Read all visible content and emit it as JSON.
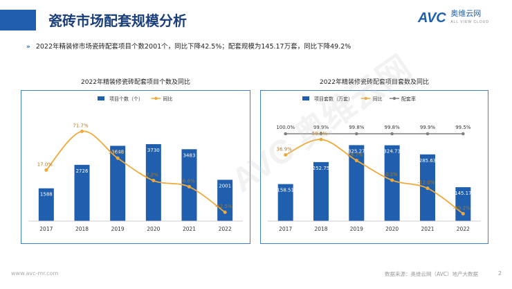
{
  "header": {
    "title": "瓷砖市场配套规模分析",
    "logo_text": "AVC",
    "logo_cn": "奥维云网",
    "logo_sub": "ALL VIEW CLOUD"
  },
  "summary": "2022年精装修市场瓷砖配套项目个数2001个，同比下降42.5%；配套规模为145.17万套，同比下降49.2%",
  "footer": {
    "left": "www.avc-mr.com",
    "right": "数据来源：奥维云网（AVC）地产大数据",
    "page": "2"
  },
  "watermark": "AVC 奥维云网",
  "colors": {
    "bar": "#1f5fae",
    "line": "#f0a93a",
    "ratio": "#808080",
    "border": "#3f7ed0"
  },
  "chart_data": [
    {
      "type": "bar",
      "title": "2022年精装修瓷砖配套项目个数及同比",
      "categories": [
        "2017",
        "2018",
        "2019",
        "2020",
        "2021",
        "2022"
      ],
      "legend": [
        "项目个数（个）",
        "同比"
      ],
      "series": [
        {
          "name": "项目个数（个）",
          "type": "bar",
          "values": [
            1588,
            2726,
            3648,
            3730,
            3483,
            2001
          ],
          "labels": [
            "1588",
            "2726",
            "3648",
            "3730",
            "3483",
            "2001"
          ]
        },
        {
          "name": "同比",
          "type": "line",
          "values": [
            17.0,
            71.7,
            33.8,
            2.2,
            -6.6,
            -42.5
          ],
          "labels": [
            "17.0%",
            "71.7%",
            "33.8%",
            "2.2%",
            "-6.6%",
            "-42.5%"
          ]
        }
      ],
      "bar_ylim": [
        0,
        4300
      ],
      "line_ylim": [
        -55,
        80
      ],
      "legend_position": "top"
    },
    {
      "type": "bar",
      "title": "2022年精装修瓷砖配套项目套数及同比",
      "categories": [
        "2017",
        "2018",
        "2019",
        "2020",
        "2021",
        "2022"
      ],
      "legend": [
        "项目套数（万套）",
        "同比",
        "配套率"
      ],
      "series": [
        {
          "name": "项目套数（万套）",
          "type": "bar",
          "values": [
            158.51,
            252.75,
            325.27,
            324.73,
            285.63,
            145.17
          ],
          "labels": [
            "158.51",
            "252.75",
            "325.27",
            "324.73",
            "285.63",
            "145.17"
          ]
        },
        {
          "name": "同比",
          "type": "line",
          "values": [
            36.9,
            59.5,
            28.7,
            -0.2,
            -12.0,
            -49.2
          ],
          "labels": [
            "36.9%",
            "59.5%",
            "28.7%",
            "-0.2%",
            "-12.0%",
            "-49.2%"
          ]
        },
        {
          "name": "配套率",
          "type": "line",
          "values": [
            100.0,
            99.9,
            99.8,
            99.8,
            99.9,
            99.5
          ],
          "labels": [
            "100.0%",
            "99.9%",
            "99.8%",
            "99.8%",
            "99.9%",
            "99.5%"
          ]
        }
      ],
      "bar_ylim": [
        0,
        380
      ],
      "line_ylim": [
        -60,
        80
      ],
      "legend_position": "top"
    }
  ]
}
